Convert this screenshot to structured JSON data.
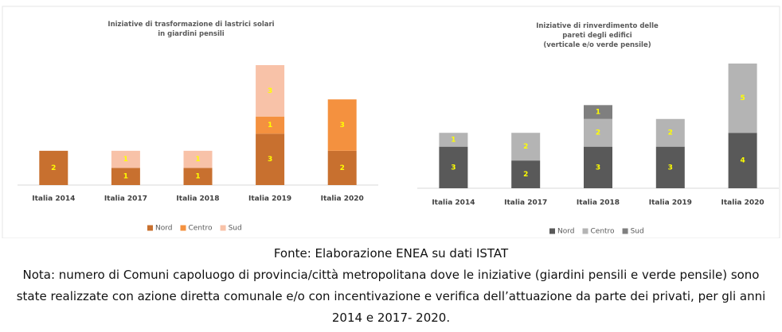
{
  "chart_data": [
    {
      "type": "stacked-bar",
      "title": "Iniziative di trasformazione di lastrici solari\nin giardini pensili",
      "categories": [
        "Italia 2014",
        "Italia 2017",
        "Italia 2018",
        "Italia 2019",
        "Italia 2020"
      ],
      "series": [
        {
          "name": "Nord",
          "color": "#c8702f",
          "values": [
            2,
            1,
            1,
            3,
            2
          ]
        },
        {
          "name": "Centro",
          "color": "#f4913f",
          "values": [
            0,
            0,
            0,
            1,
            3
          ]
        },
        {
          "name": "Sud",
          "color": "#f8c2a8",
          "values": [
            0,
            1,
            1,
            3,
            0
          ]
        }
      ],
      "legend": "bottom"
    },
    {
      "type": "stacked-bar",
      "title": "Iniziative di rinverdimento delle\npareti degli edifici\n(verticale e/o verde pensile)",
      "categories": [
        "Italia 2014",
        "Italia 2017",
        "Italia 2018",
        "Italia 2019",
        "Italia 2020"
      ],
      "series": [
        {
          "name": "Nord",
          "color": "#595959",
          "values": [
            3,
            2,
            3,
            3,
            4
          ]
        },
        {
          "name": "Centro",
          "color": "#b4b4b4",
          "values": [
            1,
            2,
            2,
            2,
            5
          ]
        },
        {
          "name": "Sud",
          "color": "#7f7f7f",
          "values": [
            0,
            0,
            1,
            0,
            0
          ]
        }
      ],
      "legend": "bottom"
    }
  ],
  "source": "Fonte: Elaborazione ENEA su dati ISTAT",
  "note": "Nota: numero di Comuni capoluogo di provincia/città metropolitana dove le iniziative (giardini pensili e verde pensile) sono state realizzate con azione diretta comunale e/o con incentivazione e verifica dell’attuazione da parte dei privati, per gli anni 2014 e 2017- 2020."
}
